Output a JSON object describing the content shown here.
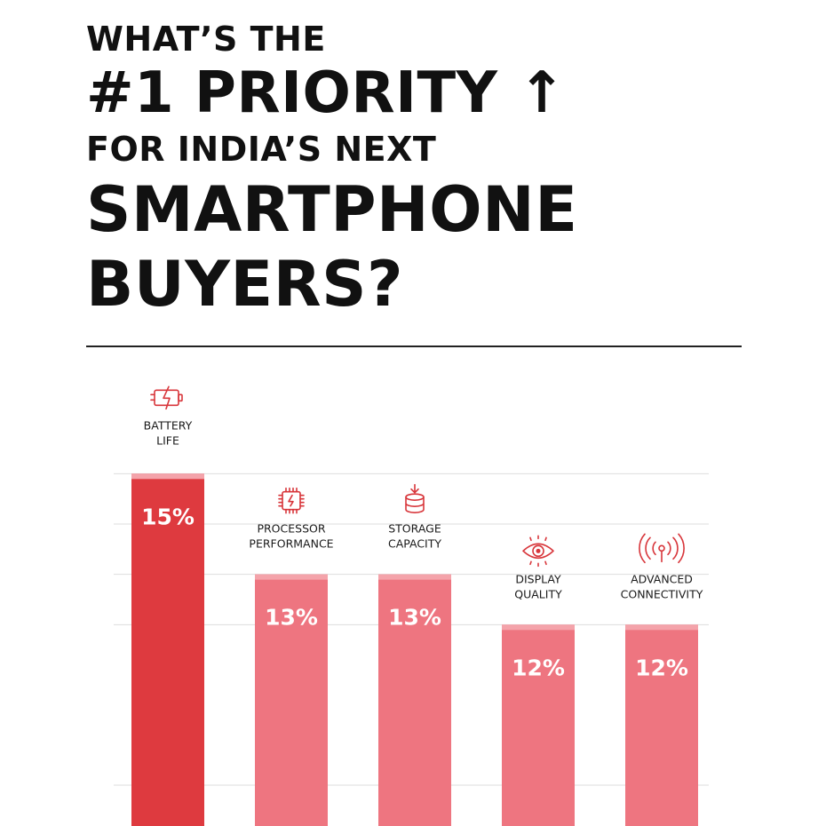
{
  "headline": {
    "line1": "WHAT’S THE",
    "line2": "#1 PRIORITY",
    "line2_arrow": "↑",
    "line3": "FOR INDIA’S NEXT",
    "line4": "SMARTPHONE",
    "line5": "BUYERS?"
  },
  "colors": {
    "top_bar": "#de3a3f",
    "bar": "#ee7580",
    "bar_cap": "#f4a3aa",
    "icon": "#d8363b",
    "grid": "#dddddd"
  },
  "chart_data": {
    "type": "bar",
    "categories": [
      [
        "BATTERY",
        "LIFE"
      ],
      [
        "PROCESSOR",
        "PERFORMANCE"
      ],
      [
        "STORAGE",
        "CAPACITY"
      ],
      [
        "DISPLAY",
        "QUALITY"
      ],
      [
        "ADVANCED",
        "CONNECTIVITY"
      ]
    ],
    "values": [
      15,
      13,
      13,
      12,
      12
    ],
    "value_labels": [
      "15%",
      "13%",
      "13%",
      "12%",
      "12%"
    ],
    "icons": [
      "battery-charging-icon",
      "processor-chip-icon",
      "storage-database-icon",
      "eye-icon",
      "wireless-antenna-icon"
    ],
    "ylim": [
      8,
      15.2
    ],
    "grid": true,
    "yticks": [
      15,
      14,
      13,
      12
    ]
  }
}
